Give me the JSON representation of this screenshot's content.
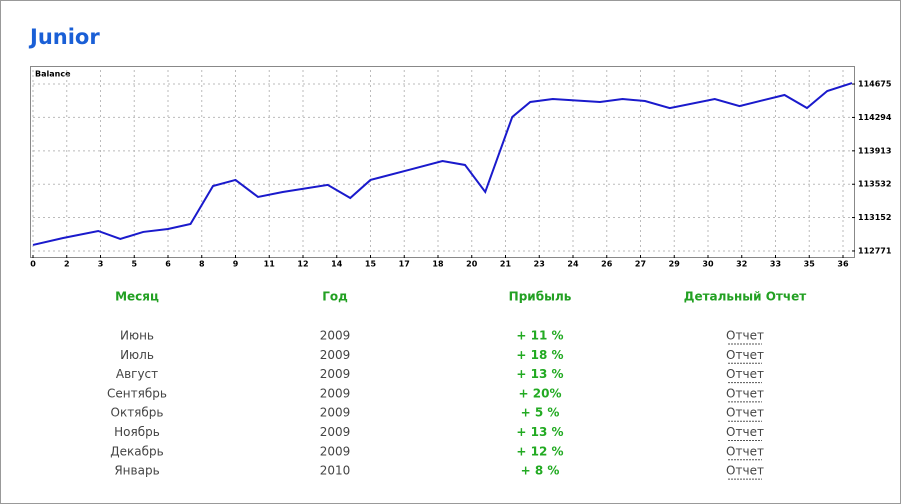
{
  "header": {
    "title": "Junior"
  },
  "chart_data": {
    "type": "line",
    "title": "Balance",
    "x": [
      0,
      1.34,
      2.9,
      3.88,
      4.9,
      6.0,
      7.0,
      8.0,
      9.0,
      10.0,
      11.1,
      13.1,
      14.1,
      15.0,
      16.7,
      18.2,
      19.2,
      20.1,
      21.3,
      22.1,
      23.1,
      25.2,
      26.2,
      27.2,
      28.3,
      30.3,
      31.4,
      33.4,
      34.4,
      35.3,
      36.4
    ],
    "series": [
      {
        "name": "Balance",
        "color": "#1a1acc",
        "values": [
          112840,
          112919,
          112999,
          112908,
          112988,
          113022,
          113079,
          113512,
          113581,
          113387,
          113444,
          113524,
          113375,
          113581,
          113695,
          113797,
          113752,
          113444,
          114299,
          114470,
          114504,
          114470,
          114504,
          114481,
          114401,
          114504,
          114424,
          114550,
          114401,
          114595,
          114686
        ]
      }
    ],
    "xlim": [
      0,
      36.4
    ],
    "xticks": [
      0,
      {
        "value": 1.5,
        "label": "2"
      },
      3,
      {
        "value": 4.5,
        "label": "5"
      },
      6,
      {
        "value": 7.5,
        "label": "8"
      },
      9,
      {
        "value": 10.5,
        "label": "11"
      },
      12,
      {
        "value": 13.5,
        "label": "14"
      },
      15,
      {
        "value": 16.5,
        "label": "17"
      },
      18,
      {
        "value": 19.5,
        "label": "20"
      },
      21,
      {
        "value": 22.5,
        "label": "23"
      },
      24,
      {
        "value": 25.5,
        "label": "26"
      },
      27,
      {
        "value": 28.5,
        "label": "29"
      },
      30,
      {
        "value": 31.5,
        "label": "32"
      },
      33,
      {
        "value": 34.5,
        "label": "35"
      },
      36
    ],
    "ylim": [
      112725,
      114835
    ],
    "yticks": [
      112771,
      113152,
      113532,
      113913,
      114294,
      114675
    ],
    "grid": true
  },
  "table": {
    "headers": [
      "Месяц",
      "Год",
      "Прибыль",
      "Детальный Отчет"
    ],
    "rows": [
      [
        "Июнь",
        "2009",
        "+ 11 %",
        "Отчет"
      ],
      [
        "Июль",
        "2009",
        "+ 18 %",
        "Отчет"
      ],
      [
        "Август",
        "2009",
        "+ 13 %",
        "Отчет"
      ],
      [
        "Сентябрь",
        "2009",
        "+ 20%",
        "Отчет"
      ],
      [
        "Октябрь",
        "2009",
        "+ 5 %",
        "Отчет"
      ],
      [
        "Ноябрь",
        "2009",
        "+ 13 %",
        "Отчет"
      ],
      [
        "Декабрь",
        "2009",
        "+ 12 %",
        "Отчет"
      ],
      [
        "Январь",
        "2010",
        "+ 8 %",
        "Отчет"
      ]
    ]
  }
}
